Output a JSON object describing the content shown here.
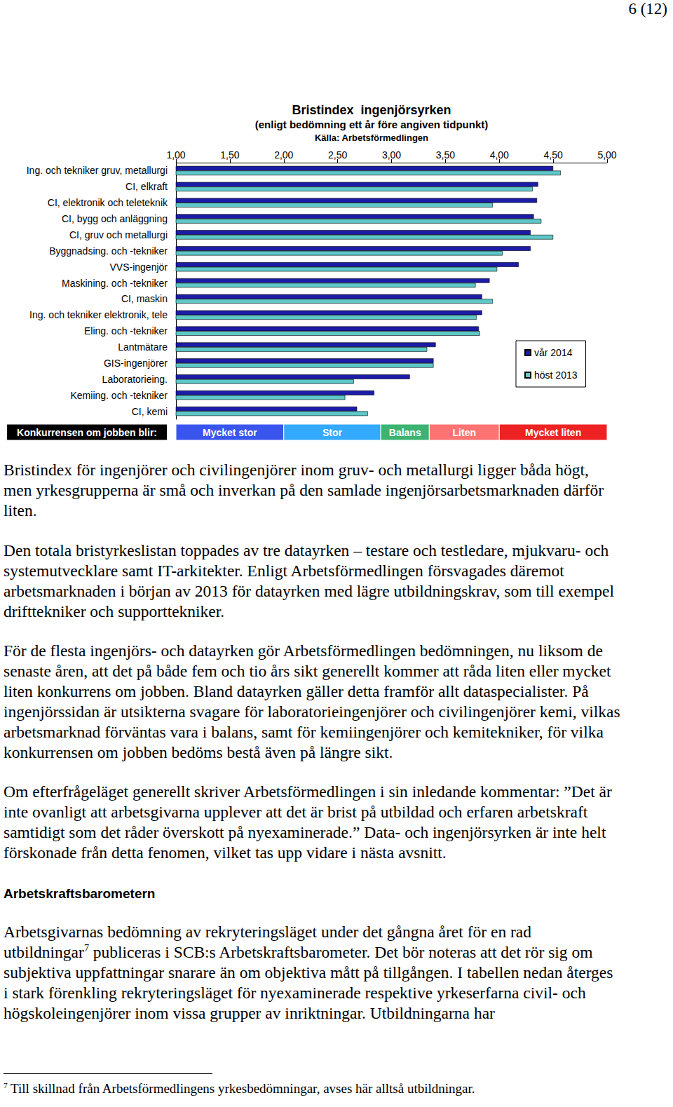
{
  "page_number": "6 (12)",
  "chart_data": {
    "type": "bar",
    "orientation": "horizontal",
    "title": "Bristindex  ingenjörsyrken",
    "subtitle": "(enligt bedömning ett år före angiven tidpunkt)",
    "source": "Källa: Arbetsförmedlingen",
    "categories": [
      "Ing. och tekniker gruv, metallurgi",
      "CI, elkraft",
      "CI, elektronik och teleteknik",
      "CI, bygg och anläggning",
      "CI, gruv och metallurgi",
      "Byggnadsing. och -tekniker",
      "VVS-ingenjör",
      "Maskining. och -tekniker",
      "CI, maskin",
      "Ing. och tekniker elektronik, tele",
      "Eling. och -tekniker",
      "Lantmätare",
      "GIS-ingenjörer",
      "Laboratorieing.",
      "Kemiing. och -tekniker",
      "CI, kemi"
    ],
    "series": [
      {
        "name": "vår 2014",
        "color": "#1c1ca8",
        "values": [
          4.5,
          4.36,
          4.35,
          4.32,
          4.29,
          4.29,
          4.18,
          3.91,
          3.84,
          3.84,
          3.81,
          3.41,
          3.39,
          3.17,
          2.84,
          2.68
        ]
      },
      {
        "name": "höst 2013",
        "color": "#5ec8c8",
        "values": [
          4.57,
          4.31,
          3.94,
          4.39,
          4.5,
          4.03,
          3.98,
          3.78,
          3.94,
          3.79,
          3.82,
          3.33,
          3.39,
          2.65,
          2.57,
          2.78
        ]
      }
    ],
    "xlim": [
      1,
      5
    ],
    "xticks": [
      {
        "value": 1,
        "label": "1,00"
      },
      {
        "value": 1.5,
        "label": "1,50"
      },
      {
        "value": 2,
        "label": "2,00"
      },
      {
        "value": 2.5,
        "label": "2,50"
      },
      {
        "value": 3,
        "label": "3,00"
      },
      {
        "value": 3.5,
        "label": "3,50"
      },
      {
        "value": 4,
        "label": "4,00"
      },
      {
        "value": 4.5,
        "label": "4,50"
      },
      {
        "value": 5,
        "label": "5,00"
      }
    ],
    "grid": false,
    "legend": "right",
    "scale_band": {
      "title": "Konkurrensen om jobben blir:",
      "segments": [
        {
          "label": "Mycket stor",
          "start": 1,
          "end": 2,
          "color": "#3a55ee"
        },
        {
          "label": "Stor",
          "start": 2,
          "end": 2.9,
          "color": "#33aaff"
        },
        {
          "label": "Balans",
          "start": 2.9,
          "end": 3.35,
          "color": "#3cb371"
        },
        {
          "label": "Liten",
          "start": 3.35,
          "end": 4,
          "color": "#ff7373"
        },
        {
          "label": "Mycket liten",
          "start": 4,
          "end": 5,
          "color": "#ee2222"
        }
      ]
    }
  },
  "paragraphs_before": [
    "Bristindex för ingenjörer och civilingenjörer inom gruv- och metallurgi ligger båda högt, men yrkesgrupperna är små och inverkan på den samlade ingenjörsarbetsmarknaden därför liten.",
    "Den totala bristyrkeslistan toppades av tre datayrken – testare och testledare, mjukvaru- och systemutvecklare samt IT-arkitekter. Enligt Arbetsförmedlingen försvagades däremot arbetsmarknaden i början av 2013 för datayrken med lägre utbildningskrav, som till exempel drifttekniker och supporttekniker.",
    "För de flesta ingenjörs- och datayrken gör Arbetsförmedlingen bedömningen, nu liksom de senaste åren, att det på både fem och tio års sikt generellt kommer att råda liten eller mycket liten konkurrens om jobben. Bland datayrken gäller detta framför allt dataspecialister. På ingenjörssidan är utsikterna svagare för laboratorieingenjörer och civilingenjörer kemi, vilkas arbetsmarknad förväntas vara i balans, samt för kemiingenjörer och kemitekniker, för vilka konkurrensen om jobben bedöms bestå även på längre sikt.",
    "Om efterfrågeläget generellt skriver Arbetsförmedlingen i sin inledande kommentar: ”Det är inte ovanligt att arbetsgivarna upplever att det är brist på utbildad och erfaren arbetskraft samtidigt som det råder överskott på nyexaminerade.” Data- och ingenjörsyrken är inte helt förskonade från detta fenomen, vilket tas upp vidare i nästa avsnitt."
  ],
  "heading": "Arbetskraftsbarometern",
  "paragraph_after": {
    "text_before": "Arbetsgivarnas bedömning av rekryteringsläget under det gångna året för en rad utbildningar",
    "footnote_ref": "7",
    "text_after": " publiceras i SCB:s Arbetskraftsbarometer. Det bör noteras att det rör sig om subjektiva uppfattningar snarare än om objektiva mått på tillgången. I tabellen nedan återges i stark förenkling rekryteringsläget för nyexaminerade respektive yrkeserfarna civil- och högskoleingenjörer inom vissa grupper av inriktningar. Utbildningarna har"
  },
  "footnote": {
    "marker": "7",
    "text": "Till skillnad från Arbetsförmedlingens yrkesbedömningar, avses här alltså utbildningar."
  }
}
